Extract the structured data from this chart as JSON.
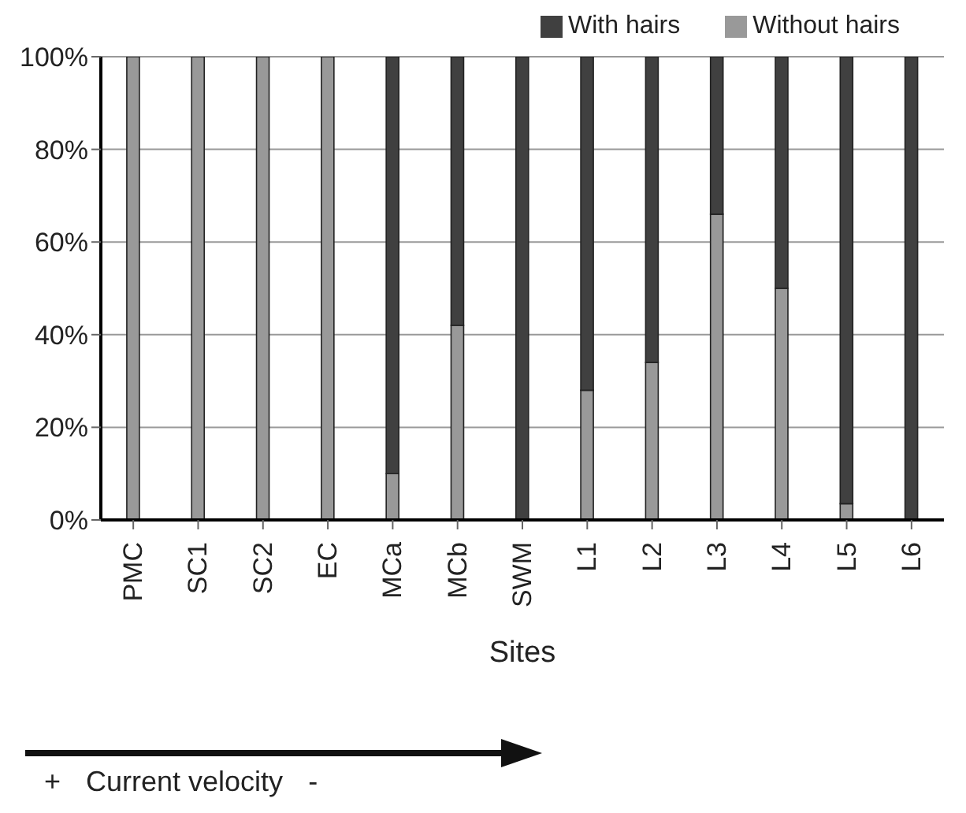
{
  "chart_data": {
    "type": "bar",
    "stacked": true,
    "xlabel": "Sites",
    "categories": [
      "PMC",
      "SC1",
      "SC2",
      "EC",
      "MCa",
      "MCb",
      "SWM",
      "L1",
      "L2",
      "L3",
      "L4",
      "L5",
      "L6"
    ],
    "series": [
      {
        "name": "Without hairs",
        "color": "#999999",
        "values": [
          100,
          100,
          100,
          100,
          10,
          42,
          0,
          28,
          34,
          66,
          50,
          3.5,
          0
        ]
      },
      {
        "name": "With hairs",
        "color": "#404040",
        "values": [
          0,
          0,
          0,
          0,
          90,
          58,
          100,
          72,
          66,
          34,
          50,
          96.5,
          100
        ]
      }
    ],
    "ylim": [
      0,
      100
    ],
    "yticks": [
      {
        "value": 0,
        "label": "0%"
      },
      {
        "value": 20,
        "label": "20%"
      },
      {
        "value": 40,
        "label": "40%"
      },
      {
        "value": 60,
        "label": "60%"
      },
      {
        "value": 80,
        "label": "80%"
      },
      {
        "value": 100,
        "label": "100%"
      }
    ],
    "grid": "y",
    "legend": "top right",
    "annotations": [
      "+",
      "Current velocity",
      "-"
    ]
  }
}
